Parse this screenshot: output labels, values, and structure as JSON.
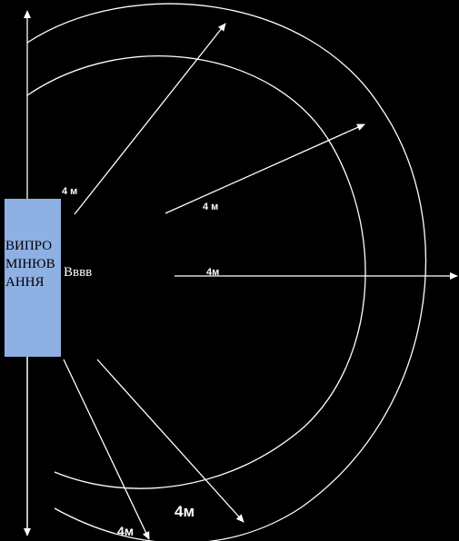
{
  "source": {
    "label": "ВИПРОМІНЮВАННЯ",
    "label_lines": [
      "ВИПРО",
      "МІНЮ",
      "ВАН",
      "НЯ"
    ]
  },
  "side_label": "Вввв",
  "distance_labels": [
    "4 м",
    "4 м",
    "4м",
    "4м",
    "4м"
  ],
  "colors": {
    "background": "#000000",
    "lines": "#ffffff",
    "source_fill": "#8eb0e3"
  }
}
